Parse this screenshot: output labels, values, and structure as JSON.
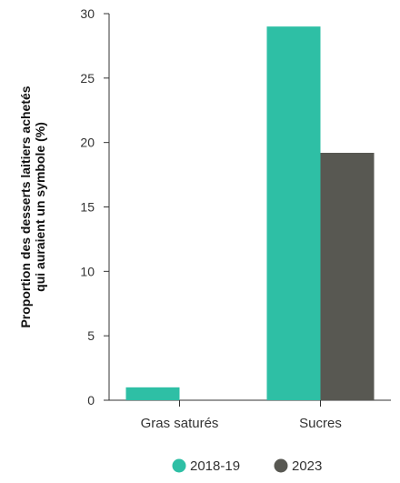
{
  "chart_data": {
    "type": "bar",
    "title": "",
    "xlabel": "",
    "ylabel_lines": [
      "Proportion des desserts laitiers achetés",
      "qui auraient un symbole (%)"
    ],
    "categories": [
      "Gras saturés",
      "Sucres"
    ],
    "series": [
      {
        "name": "2018-19",
        "color": "#2ebfa5",
        "values": [
          1.0,
          29.0
        ]
      },
      {
        "name": "2023",
        "color": "#585852",
        "values": [
          0.0,
          19.2
        ]
      }
    ],
    "ylim": [
      0,
      30
    ],
    "yticks": [
      0,
      5,
      10,
      15,
      20,
      25,
      30
    ],
    "grid": false,
    "legend_position": "bottom-center"
  }
}
